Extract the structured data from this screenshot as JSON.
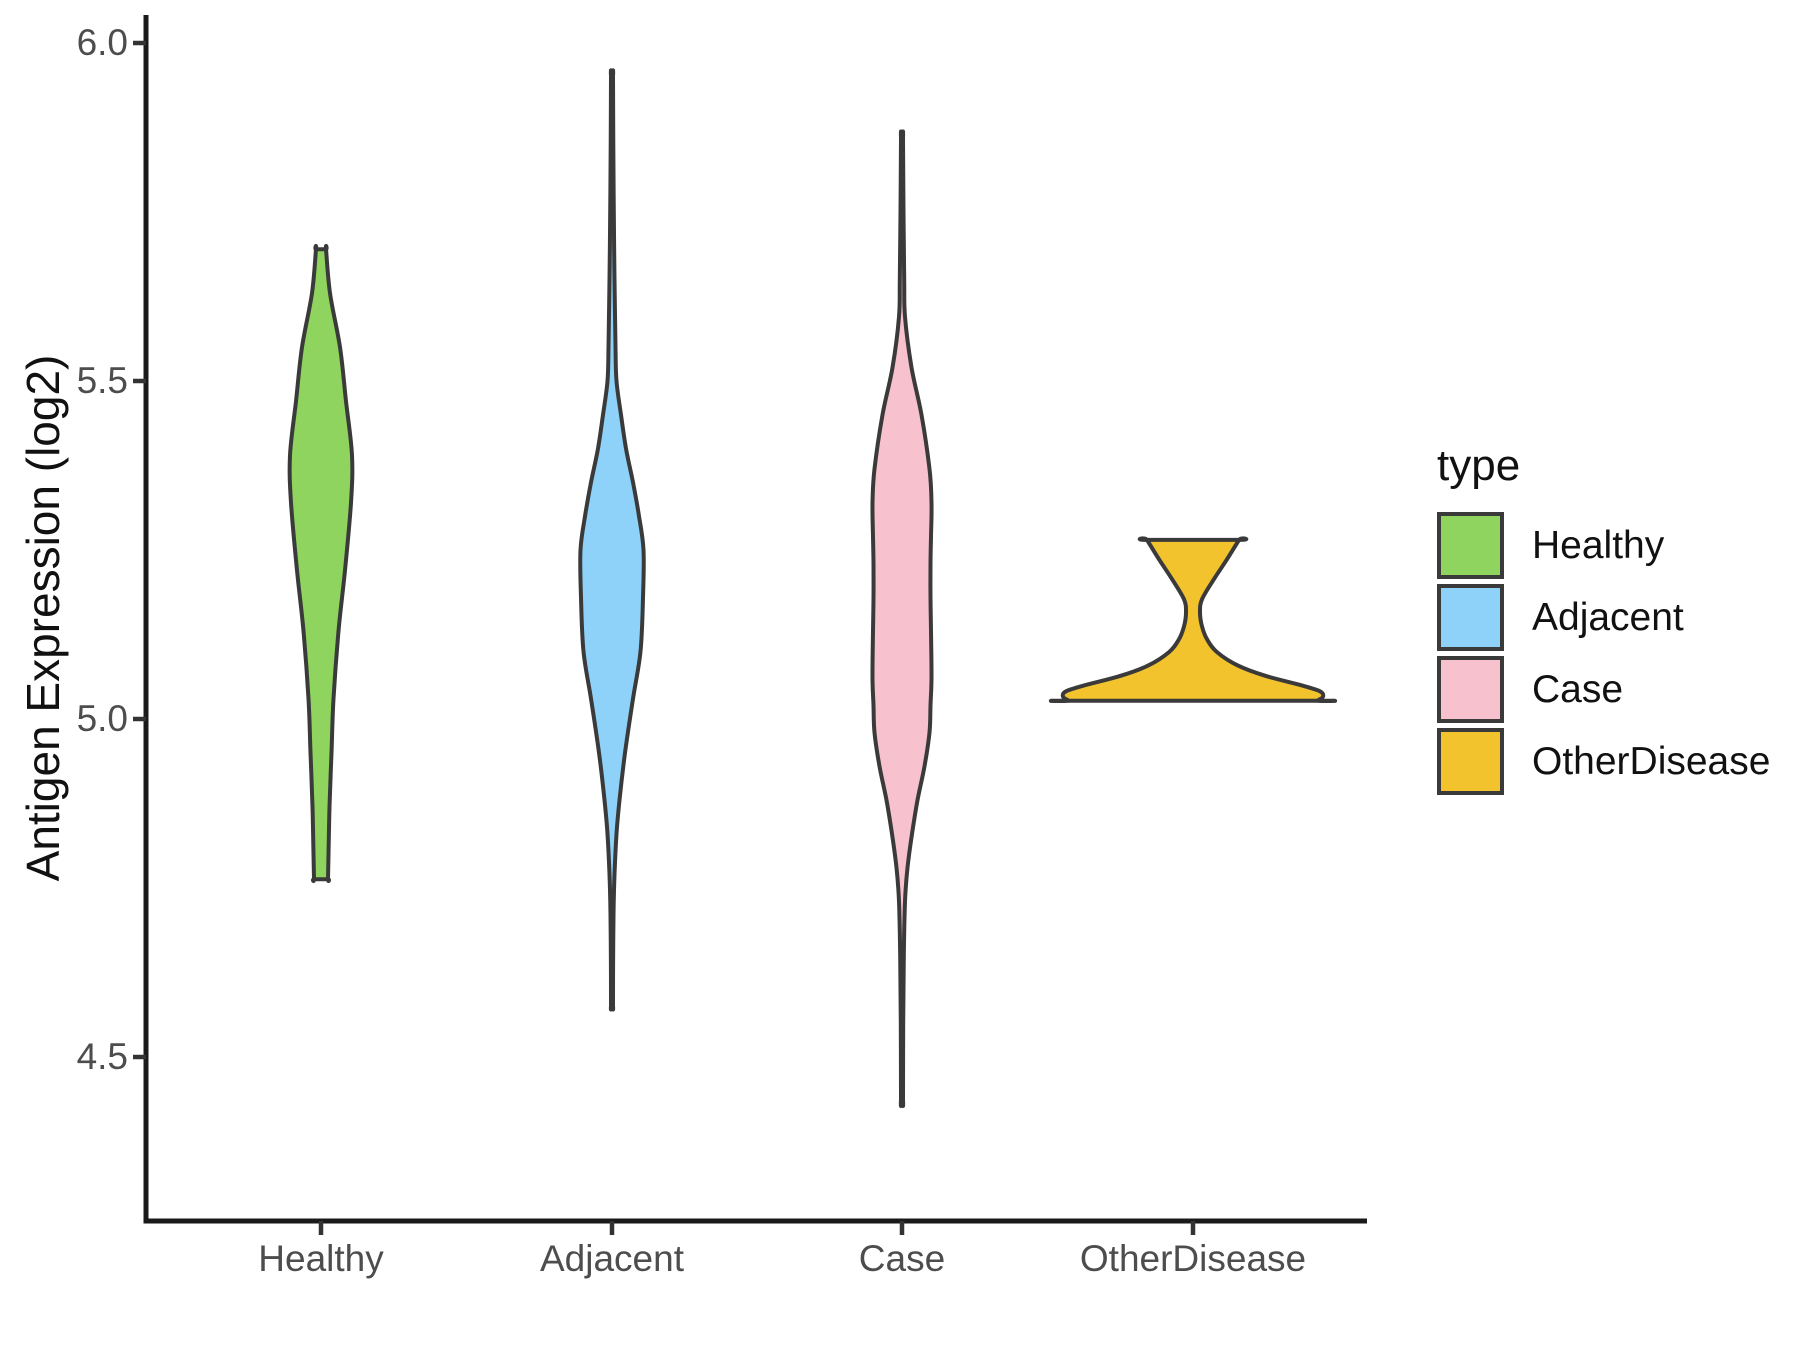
{
  "figure": {
    "background": "#FFFFFF"
  },
  "chart_data": {
    "type": "violin",
    "title": "",
    "xlabel": "",
    "ylabel": "Antigen Expression (log2)",
    "categories": [
      "Healthy",
      "Adjacent",
      "Case",
      "OtherDisease"
    ],
    "y_ticks": [
      {
        "label": "6.0",
        "value": 6.0
      },
      {
        "label": "5.5",
        "value": 5.5
      },
      {
        "label": "5.0",
        "value": 5.0
      },
      {
        "label": "4.5",
        "value": 4.5
      }
    ],
    "ylim": [
      4.33,
      6.05
    ],
    "grid": "off",
    "legend": {
      "title": "type",
      "position": "right",
      "entries": [
        {
          "label": "Healthy",
          "color": "#8FD45F"
        },
        {
          "label": "Adjacent",
          "color": "#8FD2F9"
        },
        {
          "label": "Case",
          "color": "#F7C2CD"
        },
        {
          "label": "OtherDisease",
          "color": "#F3C32E"
        }
      ]
    },
    "stroke_color": "#3A3A3A",
    "axis_color": "#1A1A1A",
    "tick_color": "#333333",
    "tick_text_color": "#4D4D4D",
    "series": [
      {
        "name": "Healthy",
        "color": "#8FD45F",
        "value_range": [
          4.76,
          5.7
        ],
        "peak_value": 5.38,
        "profile": [
          [
            5.695,
            5
          ],
          [
            5.63,
            9
          ],
          [
            5.55,
            19
          ],
          [
            5.47,
            25
          ],
          [
            5.39,
            31
          ],
          [
            5.32,
            30
          ],
          [
            5.22,
            24
          ],
          [
            5.13,
            17.5
          ],
          [
            5.03,
            12.5
          ],
          [
            4.95,
            10.5
          ],
          [
            4.87,
            8.5
          ],
          [
            4.8,
            7.5
          ],
          [
            4.763,
            7
          ]
        ]
      },
      {
        "name": "Adjacent",
        "color": "#8FD2F9",
        "value_range": [
          4.58,
          5.95
        ],
        "peak_value": 5.21,
        "profile": [
          [
            5.952,
            1
          ],
          [
            5.85,
            1.3
          ],
          [
            5.75,
            1.8
          ],
          [
            5.65,
            2.5
          ],
          [
            5.55,
            3.5
          ],
          [
            5.5,
            4.5
          ],
          [
            5.45,
            9
          ],
          [
            5.4,
            14
          ],
          [
            5.35,
            21
          ],
          [
            5.3,
            27
          ],
          [
            5.25,
            31.5
          ],
          [
            5.18,
            31
          ],
          [
            5.1,
            28.5
          ],
          [
            5.03,
            21
          ],
          [
            4.95,
            13
          ],
          [
            4.88,
            7.5
          ],
          [
            4.83,
            4.5
          ],
          [
            4.77,
            2.5
          ],
          [
            4.71,
            1.5
          ],
          [
            4.64,
            1.1
          ],
          [
            4.575,
            1
          ]
        ]
      },
      {
        "name": "Case",
        "color": "#F7C2CD",
        "value_range": [
          4.44,
          5.86
        ],
        "peak_value": 5.08,
        "profile": [
          [
            5.861,
            1
          ],
          [
            5.75,
            1.5
          ],
          [
            5.65,
            2.2
          ],
          [
            5.595,
            3
          ],
          [
            5.52,
            9.5
          ],
          [
            5.45,
            19.5
          ],
          [
            5.37,
            27.5
          ],
          [
            5.32,
            29.5
          ],
          [
            5.27,
            29
          ],
          [
            5.23,
            28.5
          ],
          [
            5.18,
            28.5
          ],
          [
            5.13,
            29
          ],
          [
            5.06,
            29.5
          ],
          [
            5.02,
            28.5
          ],
          [
            4.98,
            27.5
          ],
          [
            4.93,
            22.5
          ],
          [
            4.88,
            15.5
          ],
          [
            4.83,
            10
          ],
          [
            4.78,
            5.5
          ],
          [
            4.73,
            3
          ],
          [
            4.65,
            1.8
          ],
          [
            4.55,
            1.2
          ],
          [
            4.436,
            1
          ]
        ]
      },
      {
        "name": "OtherDisease",
        "color": "#F3C32E",
        "value_range": [
          5.03,
          5.27
        ],
        "peak_value": 5.04,
        "profile": [
          [
            5.265,
            46
          ],
          [
            5.235,
            33.5
          ],
          [
            5.207,
            21
          ],
          [
            5.177,
            9
          ],
          [
            5.158,
            7
          ],
          [
            5.137,
            9
          ],
          [
            5.118,
            14
          ],
          [
            5.099,
            24
          ],
          [
            5.079,
            45
          ],
          [
            5.064,
            72
          ],
          [
            5.05,
            108
          ],
          [
            5.041,
            127
          ],
          [
            5.033,
            130
          ],
          [
            5.027,
            124
          ]
        ]
      }
    ]
  }
}
